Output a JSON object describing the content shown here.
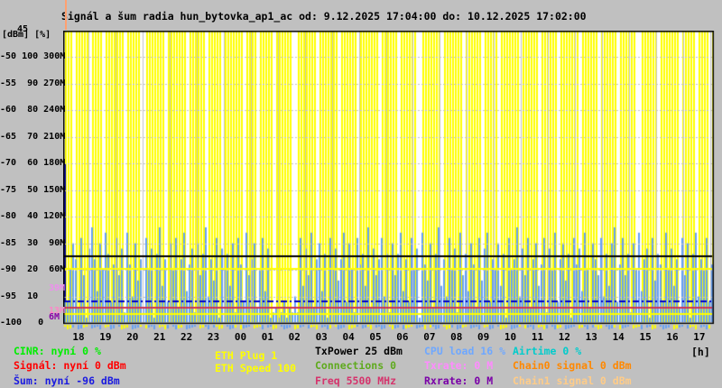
{
  "title": {
    "text": "Signál a šum radia hun_bytovka_ap1_ac od: 9.12.2025 17:04:00 do: 10.12.2025 17:02:00"
  },
  "axes": {
    "unit_label": "[dBm] [%]",
    "top_overlap_label": "45",
    "hour_unit": "[h]",
    "rows": [
      "-50 100 300M",
      "-55  90 270M",
      "-60  80 240M",
      "-65  70 210M",
      "-70  60 180M",
      "-75  50 150M",
      "-80  40 120M",
      "-85  30  90M",
      "-90  20  60M",
      "-95  10     ",
      "-100   0    "
    ],
    "hours": [
      "18",
      "19",
      "20",
      "21",
      "22",
      "23",
      "00",
      "01",
      "02",
      "03",
      "04",
      "05",
      "06",
      "07",
      "08",
      "09",
      "10",
      "11",
      "12",
      "13",
      "14",
      "15",
      "16",
      "17"
    ],
    "rate_marks": [
      {
        "label": "39M",
        "mbit": 39,
        "color": "#ef8cef"
      },
      {
        "label": "13M",
        "mbit": 13,
        "color": "#ff85c8"
      },
      {
        "label": "6M",
        "mbit": 6,
        "color": "#8800a8"
      }
    ]
  },
  "chart_data": {
    "type": "bar",
    "title": "Signál a šum radia hun_bytovka_ap1_ac",
    "time_start": "9.12.2025 17:04:00",
    "time_end": "10.12.2025 17:02:00",
    "dbm_axis": {
      "min": -100,
      "max": -45
    },
    "pct_axis": {
      "min": 0,
      "max": 100
    },
    "mbit_axis": {
      "min": 0,
      "max": 300
    },
    "grid": true,
    "colors": {
      "plot_bg": "#ffffff",
      "eth_stripe": "#ffff00",
      "noise_bar": "#66a1f5",
      "noise_spike": "#0000bb",
      "gridline": "#c4c4c4"
    },
    "series": [
      {
        "name": "noise_max_dbm",
        "color": "#66a1f5",
        "values": [
          -93,
          -96,
          -90,
          -85,
          -88,
          -97,
          -84,
          -91,
          -99,
          -86,
          -82,
          -88,
          -94,
          -85,
          -90,
          -83,
          -87,
          -96,
          -89,
          -84,
          -91,
          -86,
          -98,
          -83,
          -89,
          -95,
          -85,
          -92,
          -88,
          -97,
          -84,
          -90,
          -86,
          -99,
          -87,
          -82,
          -93,
          -88,
          -96,
          -85,
          -90,
          -84,
          -97,
          -88,
          -83,
          -94,
          -89,
          -86,
          -98,
          -85,
          -91,
          -87,
          -82,
          -95,
          -88,
          -92,
          -84,
          -99,
          -86,
          -90,
          -87,
          -93,
          -85,
          -98,
          -84,
          -89,
          -96,
          -83,
          -91,
          -88,
          -85,
          -97,
          -90,
          -84,
          -94,
          -86,
          -99,
          -98,
          -97,
          -99,
          -98,
          -96,
          -99,
          -97,
          -98,
          -95,
          -98,
          -84,
          -93,
          -86,
          -91,
          -83,
          -97,
          -88,
          -85,
          -94,
          -87,
          -99,
          -84,
          -90,
          -86,
          -92,
          -88,
          -83,
          -96,
          -85,
          -90,
          -98,
          -84,
          -89,
          -87,
          -93,
          -82,
          -97,
          -86,
          -91,
          -88,
          -84,
          -95,
          -87,
          -98,
          -85,
          -91,
          -87,
          -83,
          -94,
          -88,
          -96,
          -84,
          -90,
          -86,
          -99,
          -83,
          -89,
          -92,
          -85,
          -97,
          -87,
          -82,
          -93,
          -88,
          -95,
          -84,
          -90,
          -86,
          -98,
          -83,
          -91,
          -87,
          -94,
          -85,
          -89,
          -97,
          -84,
          -92,
          -86,
          -83,
          -96,
          -88,
          -90,
          -85,
          -93,
          -87,
          -99,
          -84,
          -90,
          -88,
          -82,
          -95,
          -86,
          -91,
          -84,
          -97,
          -88,
          -85,
          -93,
          -89,
          -84,
          -98,
          -86,
          -90,
          -83,
          -96,
          -88,
          -85,
          -92,
          -87,
          -99,
          -84,
          -89,
          -86,
          -94,
          -83,
          -90,
          -97,
          -85,
          -88,
          -91,
          -84,
          -95,
          -87,
          -93,
          -85,
          -82,
          -96,
          -89,
          -84,
          -91,
          -87,
          -98,
          -85,
          -90,
          -83,
          -94,
          -88,
          -86,
          -99,
          -84,
          -92,
          -87,
          -89,
          -96,
          -83,
          -90,
          -86,
          -93,
          -88,
          -97,
          -84,
          -91,
          -85,
          -99,
          -87,
          -83,
          -95,
          -88,
          -90,
          -84,
          -96,
          -89
        ]
      },
      {
        "name": "eth_plug_stripes",
        "color": "#ffff00",
        "gap_columns": [
          3,
          9,
          14,
          22,
          28,
          29,
          37,
          45,
          52,
          58,
          66,
          71,
          77,
          84,
          85,
          93,
          101,
          108,
          116,
          123,
          130,
          131,
          139,
          147,
          154,
          160,
          168,
          175,
          182,
          190,
          197,
          204,
          211,
          212,
          219,
          227,
          233,
          238
        ]
      }
    ],
    "spikes": [
      {
        "col": 0,
        "top_dbm": -70,
        "bottom_dbm": -96,
        "color": "#0000bb"
      }
    ],
    "reference_lines": [
      {
        "axis": "dbm",
        "value": -87.5,
        "color": "#000000",
        "style": "solid",
        "width": 2
      },
      {
        "axis": "mbit",
        "value": 61,
        "color": "#ffff00",
        "style": "solid",
        "width": 2
      },
      {
        "axis": "dbm",
        "value": -96,
        "color": "#0000cc",
        "style": "dashdot",
        "width": 2
      },
      {
        "axis": "dbm",
        "value": -97.1,
        "color": "#cc3355",
        "style": "solid",
        "width": 2
      },
      {
        "axis": "mbit",
        "value": 10.5,
        "color": "#ffff00",
        "style": "solid",
        "width": 2
      }
    ]
  },
  "legend": {
    "columns": [
      {
        "items": [
          {
            "label": "CINR: nyní 0 %",
            "color": "#00ee00"
          },
          {
            "label": "Signál: nyní 0 dBm",
            "color": "#ff0000"
          },
          {
            "label": "Šum: nyní -96 dBm",
            "color": "#1a1ae0"
          }
        ]
      },
      {
        "items": [
          {
            "label": "ETH Plug 1",
            "color": "#ffff00"
          },
          {
            "label": "ETH Speed 100",
            "color": "#ffff00"
          }
        ]
      },
      {
        "items": [
          {
            "label": "TxPower 25 dBm",
            "color": "#000000"
          },
          {
            "label": "Connections 0",
            "color": "#5faa1e"
          },
          {
            "label": "Freq 5500 MHz",
            "color": "#d6336c"
          }
        ]
      },
      {
        "items": [
          {
            "label": "CPU load 16 %",
            "color": "#6fa8ff"
          },
          {
            "label": "Txrate: 0 M",
            "color": "#ff8aff"
          },
          {
            "label": "Rxrate: 0 M",
            "color": "#7a00a8"
          }
        ]
      },
      {
        "items": [
          {
            "label": "Airtime 0 %",
            "color": "#00cccc"
          },
          {
            "label": "Chain0 signal 0 dBm",
            "color": "#ff8800"
          },
          {
            "label": "Chain1 signal 0 dBm",
            "color": "#ffcc88"
          }
        ]
      }
    ]
  }
}
